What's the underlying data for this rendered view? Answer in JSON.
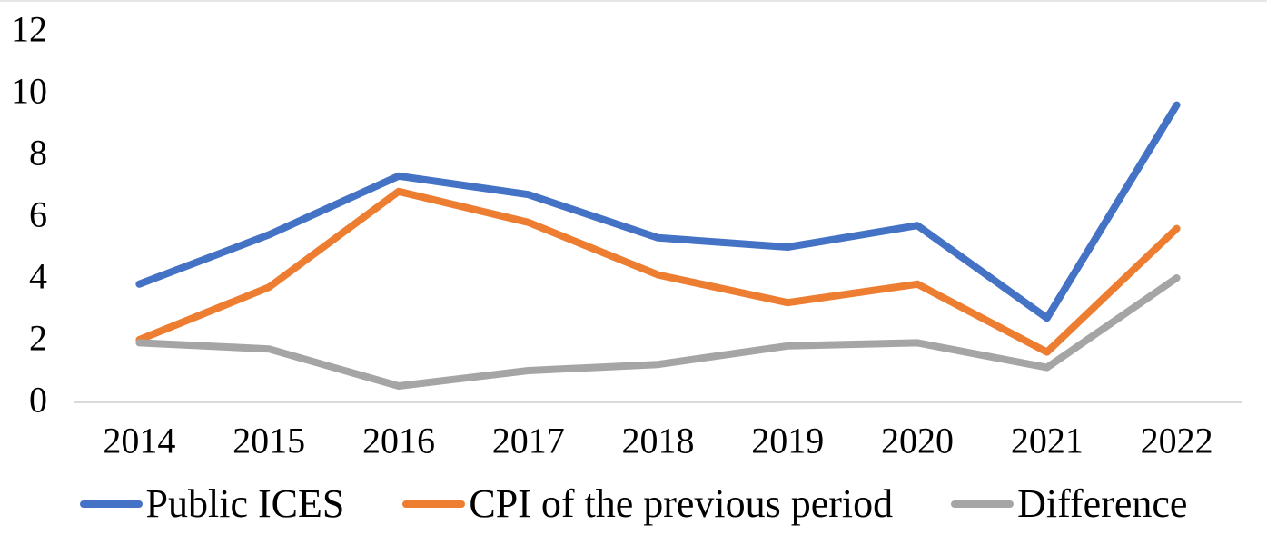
{
  "chart_data": {
    "type": "line",
    "title": "",
    "xlabel": "",
    "ylabel": "",
    "categories": [
      "2014",
      "2015",
      "2016",
      "2017",
      "2018",
      "2019",
      "2020",
      "2021",
      "2022"
    ],
    "series": [
      {
        "name": "Public ICES",
        "color": "#4472C4",
        "values": [
          3.8,
          5.4,
          7.3,
          6.7,
          5.3,
          5.0,
          5.7,
          2.7,
          9.6
        ]
      },
      {
        "name": "CPI of the previous period",
        "color": "#ED7D31",
        "values": [
          2.0,
          3.7,
          6.8,
          5.8,
          4.1,
          3.2,
          3.8,
          1.6,
          5.6
        ]
      },
      {
        "name": "Difference",
        "color": "#A5A5A5",
        "values": [
          1.9,
          1.7,
          0.5,
          1.0,
          1.2,
          1.8,
          1.9,
          1.1,
          4.0
        ]
      }
    ],
    "ylim": [
      0,
      12
    ],
    "yticks": [
      0,
      2,
      4,
      6,
      8,
      10,
      12
    ],
    "grid": false,
    "legend_position": "bottom",
    "axis_color": "#D9D9D9",
    "text_color": "#000000"
  }
}
